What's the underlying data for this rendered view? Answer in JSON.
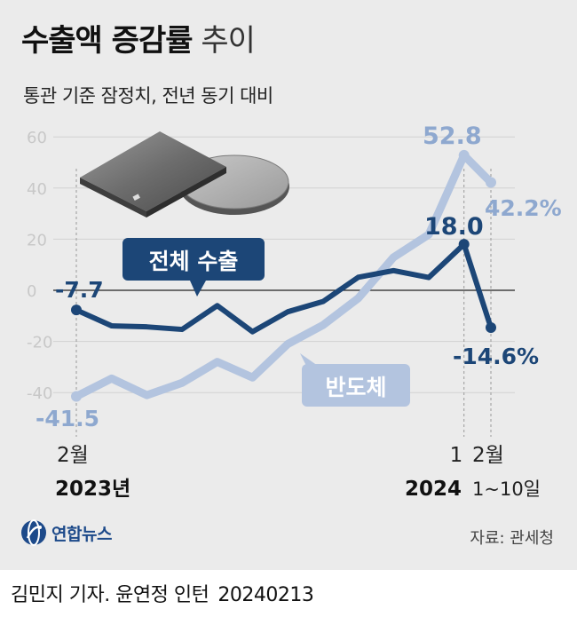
{
  "title_bold": "수출액 증감률",
  "title_light": "추이",
  "subtitle": "통관 기준 잠정치, 전년 동기 대비",
  "source": "자료: 관세청",
  "logo_text": "연합뉴스",
  "credit": "김민지 기자. 윤연정 인턴",
  "credit_date": "20240213",
  "colors": {
    "total": "#1c4677",
    "semi": "#b3c4df",
    "semi_label": "#8ea8cf",
    "background": "#ebebeb"
  },
  "icons": [
    "chip-and-wafer-illustration",
    "yonhap-globe-logo-icon"
  ],
  "chart_data": {
    "type": "line",
    "ylim": [
      -50,
      60
    ],
    "yticks": [
      "60",
      "40",
      "20",
      "0",
      "-20",
      "-40"
    ],
    "x": [
      "2023-02",
      "2023-03",
      "2023-04",
      "2023-05",
      "2023-06",
      "2023-07",
      "2023-08",
      "2023-09",
      "2023-10",
      "2023-11",
      "2023-12",
      "2024-01",
      "2024-02(1~10일)"
    ],
    "x_labels": {
      "first_month": "2월",
      "first_year": "2023년",
      "jan_month": "1",
      "jan_year": "2024",
      "last_month": "2월",
      "last_range": "1~10일"
    },
    "series": [
      {
        "name": "전체 수출",
        "values": [
          -7.7,
          -13.9,
          -14.3,
          -15.3,
          -6.0,
          -16.2,
          -8.4,
          -4.4,
          5.1,
          7.7,
          5.0,
          18.0,
          -14.6
        ],
        "labels": {
          "first": "-7.7",
          "peak": "18.0",
          "last": "-14.6%"
        }
      },
      {
        "name": "반도체",
        "values": [
          -41.5,
          -34.5,
          -41.0,
          -36.2,
          -28.0,
          -34.1,
          -21.0,
          -13.6,
          -3.1,
          12.9,
          21.8,
          52.8,
          42.2
        ],
        "labels": {
          "first": "-41.5",
          "peak": "52.8",
          "last": "42.2%"
        }
      }
    ]
  }
}
